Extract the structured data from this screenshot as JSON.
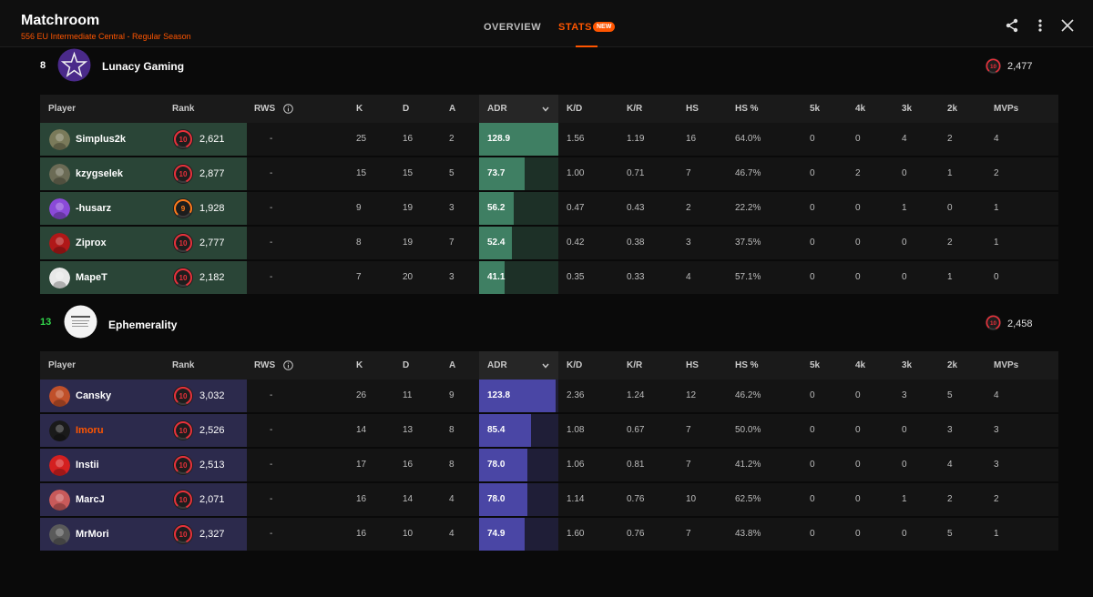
{
  "header": {
    "title": "Matchroom",
    "subtitle": "556 EU Intermediate Central - Regular Season",
    "tabs": {
      "overview": "OVERVIEW",
      "stats": "STATS",
      "new_badge": "NEW"
    },
    "icons": [
      "share-icon",
      "more-vertical-icon",
      "close-icon"
    ]
  },
  "columns": {
    "player": "Player",
    "rank": "Rank",
    "rws": "RWS",
    "k": "K",
    "d": "D",
    "a": "A",
    "adr": "ADR",
    "kd": "K/D",
    "kr": "K/R",
    "hs": "HS",
    "hs_pct": "HS %",
    "k5": "5k",
    "k4": "4k",
    "k3": "3k",
    "k2": "2k",
    "mvps": "MVPs"
  },
  "teams": [
    {
      "position": "8",
      "position_color": "#ffffff",
      "name": "Lunacy Gaming",
      "elo": "2,477",
      "level": "10",
      "players": [
        {
          "name": "Simplus2k",
          "level": "10",
          "elo": "2,621",
          "rws": "-",
          "k": "25",
          "d": "16",
          "a": "2",
          "adr": "128.9",
          "adr_fill": 1.0,
          "kd": "1.56",
          "kr": "1.19",
          "hs": "16",
          "hs_pct": "64.0%",
          "k5": "0",
          "k4": "0",
          "k3": "4",
          "k2": "2",
          "mvps": "4",
          "avatar_color": "#7a7a5a"
        },
        {
          "name": "kzygselek",
          "level": "10",
          "elo": "2,877",
          "rws": "-",
          "k": "15",
          "d": "15",
          "a": "5",
          "adr": "73.7",
          "adr_fill": 0.57,
          "kd": "1.00",
          "kr": "0.71",
          "hs": "7",
          "hs_pct": "46.7%",
          "k5": "0",
          "k4": "2",
          "k3": "0",
          "k2": "1",
          "mvps": "2",
          "avatar_color": "#6b6b55"
        },
        {
          "name": "-husarz",
          "level": "9",
          "elo": "1,928",
          "rws": "-",
          "k": "9",
          "d": "19",
          "a": "3",
          "adr": "56.2",
          "adr_fill": 0.44,
          "kd": "0.47",
          "kr": "0.43",
          "hs": "2",
          "hs_pct": "22.2%",
          "k5": "0",
          "k4": "0",
          "k3": "1",
          "k2": "0",
          "mvps": "1",
          "avatar_color": "#8a4ad8"
        },
        {
          "name": "Ziprox",
          "level": "10",
          "elo": "2,777",
          "rws": "-",
          "k": "8",
          "d": "19",
          "a": "7",
          "adr": "52.4",
          "adr_fill": 0.41,
          "kd": "0.42",
          "kr": "0.38",
          "hs": "3",
          "hs_pct": "37.5%",
          "k5": "0",
          "k4": "0",
          "k3": "0",
          "k2": "2",
          "mvps": "1",
          "avatar_color": "#b01818"
        },
        {
          "name": "MapeT",
          "level": "10",
          "elo": "2,182",
          "rws": "-",
          "k": "7",
          "d": "20",
          "a": "3",
          "adr": "41.1",
          "adr_fill": 0.32,
          "kd": "0.35",
          "kr": "0.33",
          "hs": "4",
          "hs_pct": "57.1%",
          "k5": "0",
          "k4": "0",
          "k3": "0",
          "k2": "1",
          "mvps": "0",
          "avatar_color": "#e8e8e8"
        }
      ]
    },
    {
      "position": "13",
      "position_color": "#32d74b",
      "name": "Ephemerality",
      "elo": "2,458",
      "level": "10",
      "players": [
        {
          "name": "Cansky",
          "level": "10",
          "elo": "3,032",
          "rws": "-",
          "k": "26",
          "d": "11",
          "a": "9",
          "adr": "123.8",
          "adr_fill": 0.96,
          "kd": "2.36",
          "kr": "1.24",
          "hs": "12",
          "hs_pct": "46.2%",
          "k5": "0",
          "k4": "0",
          "k3": "3",
          "k2": "5",
          "mvps": "4",
          "avatar_color": "#c0502a"
        },
        {
          "name": "Imoru",
          "level": "10",
          "elo": "2,526",
          "rws": "-",
          "k": "14",
          "d": "13",
          "a": "8",
          "adr": "85.4",
          "adr_fill": 0.66,
          "kd": "1.08",
          "kr": "0.67",
          "hs": "7",
          "hs_pct": "50.0%",
          "k5": "0",
          "k4": "0",
          "k3": "0",
          "k2": "3",
          "mvps": "3",
          "avatar_color": "#1a1a1a",
          "highlight": true
        },
        {
          "name": "Instii",
          "level": "10",
          "elo": "2,513",
          "rws": "-",
          "k": "17",
          "d": "16",
          "a": "8",
          "adr": "78.0",
          "adr_fill": 0.61,
          "kd": "1.06",
          "kr": "0.81",
          "hs": "7",
          "hs_pct": "41.2%",
          "k5": "0",
          "k4": "0",
          "k3": "0",
          "k2": "4",
          "mvps": "3",
          "avatar_color": "#d42020"
        },
        {
          "name": "MarcJ",
          "level": "10",
          "elo": "2,071",
          "rws": "-",
          "k": "16",
          "d": "14",
          "a": "4",
          "adr": "78.0",
          "adr_fill": 0.61,
          "kd": "1.14",
          "kr": "0.76",
          "hs": "10",
          "hs_pct": "62.5%",
          "k5": "0",
          "k4": "0",
          "k3": "1",
          "k2": "2",
          "mvps": "2",
          "avatar_color": "#c85a5a"
        },
        {
          "name": "MrMori",
          "level": "10",
          "elo": "2,327",
          "rws": "-",
          "k": "16",
          "d": "10",
          "a": "4",
          "adr": "74.9",
          "adr_fill": 0.58,
          "kd": "1.60",
          "kr": "0.76",
          "hs": "7",
          "hs_pct": "43.8%",
          "k5": "0",
          "k4": "0",
          "k3": "0",
          "k2": "5",
          "mvps": "1",
          "avatar_color": "#5a5a5a"
        }
      ]
    }
  ],
  "colors": {
    "accent": "#ff5500",
    "level10": "#e8303a",
    "level9": "#ff7a1a"
  }
}
